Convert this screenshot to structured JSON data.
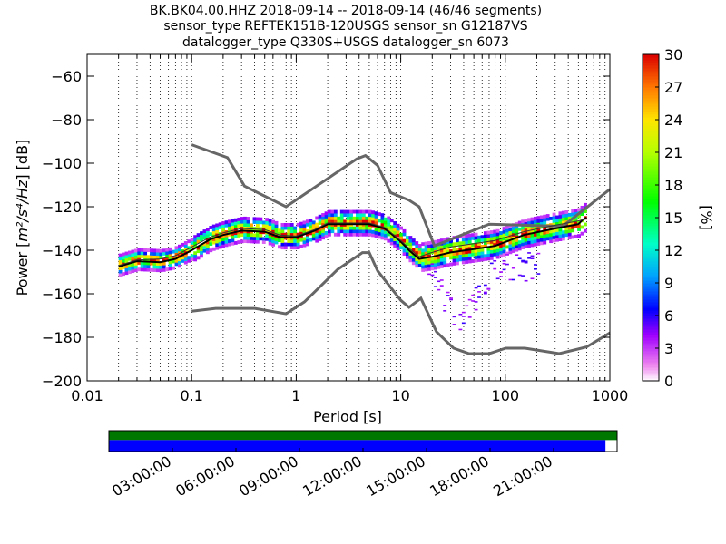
{
  "chart_data": {
    "type": "heatmap",
    "title_lines": [
      "BK.BK04.00.HHZ   2018-09-14 -- 2018-09-14  (46/46 segments)",
      "sensor_type REFTEK151B-120USGS sensor_sn G12187VS",
      "datalogger_type Q330S+USGS datalogger_sn 6073"
    ],
    "xlabel": "Period [s]",
    "ylabel_prefix": "Power [",
    "ylabel_units": "m²/s⁴/Hz",
    "ylabel_suffix": "] [dB]",
    "xscale": "log",
    "xlim": [
      0.01,
      1000
    ],
    "ylim": [
      -200,
      -50
    ],
    "x_ticks": [
      {
        "v": 0.01,
        "label": "0.01"
      },
      {
        "v": 0.1,
        "label": "0.1"
      },
      {
        "v": 1,
        "label": "1"
      },
      {
        "v": 10,
        "label": "10"
      },
      {
        "v": 100,
        "label": "100"
      },
      {
        "v": 1000,
        "label": "1000"
      }
    ],
    "y_ticks": [
      {
        "v": -60,
        "label": "−60"
      },
      {
        "v": -80,
        "label": "−80"
      },
      {
        "v": -100,
        "label": "−100"
      },
      {
        "v": -120,
        "label": "−120"
      },
      {
        "v": -140,
        "label": "−140"
      },
      {
        "v": -160,
        "label": "−160"
      },
      {
        "v": -180,
        "label": "−180"
      },
      {
        "v": -200,
        "label": "−200"
      }
    ],
    "grid": "vertical dotted at minor log ticks",
    "colorbar": {
      "label": "[%]",
      "range": [
        0,
        30
      ],
      "ticks": [
        {
          "v": 0,
          "label": "0"
        },
        {
          "v": 3,
          "label": "3"
        },
        {
          "v": 6,
          "label": "6"
        },
        {
          "v": 9,
          "label": "9"
        },
        {
          "v": 12,
          "label": "12"
        },
        {
          "v": 15,
          "label": "15"
        },
        {
          "v": 18,
          "label": "18"
        },
        {
          "v": 21,
          "label": "21"
        },
        {
          "v": 24,
          "label": "24"
        },
        {
          "v": 27,
          "label": "27"
        },
        {
          "v": 30,
          "label": "30"
        }
      ]
    },
    "noise_models": [
      {
        "name": "high",
        "points": [
          [
            0.1,
            -91.5
          ],
          [
            0.22,
            -97.4
          ],
          [
            0.32,
            -110.5
          ],
          [
            0.8,
            -120
          ],
          [
            3.8,
            -98
          ],
          [
            4.6,
            -96.5
          ],
          [
            6,
            -101
          ],
          [
            8,
            -113.5
          ],
          [
            12,
            -117
          ],
          [
            15,
            -120
          ],
          [
            21,
            -138
          ],
          [
            70,
            -128
          ],
          [
            354,
            -129
          ],
          [
            1000,
            -112
          ]
        ]
      },
      {
        "name": "low",
        "points": [
          [
            0.1,
            -168
          ],
          [
            0.17,
            -166.7
          ],
          [
            0.4,
            -166.7
          ],
          [
            0.8,
            -169.2
          ],
          [
            1.2,
            -163.7
          ],
          [
            2.5,
            -148.8
          ],
          [
            4.3,
            -141.1
          ],
          [
            5.0,
            -141.1
          ],
          [
            6,
            -149.4
          ],
          [
            10,
            -163
          ],
          [
            12,
            -166.2
          ],
          [
            15.6,
            -162.1
          ],
          [
            22,
            -177.5
          ],
          [
            32,
            -185
          ],
          [
            45,
            -187.5
          ],
          [
            70,
            -187.5
          ],
          [
            101,
            -185
          ],
          [
            154,
            -185
          ],
          [
            328,
            -187.5
          ],
          [
            600,
            -184.4
          ],
          [
            1000,
            -178
          ]
        ]
      }
    ],
    "mean_curve": [
      [
        0.02,
        -147.5
      ],
      [
        0.03,
        -145
      ],
      [
        0.05,
        -145.5
      ],
      [
        0.07,
        -144
      ],
      [
        0.1,
        -140
      ],
      [
        0.15,
        -135
      ],
      [
        0.2,
        -133
      ],
      [
        0.3,
        -131
      ],
      [
        0.5,
        -131.5
      ],
      [
        0.7,
        -134
      ],
      [
        1,
        -134
      ],
      [
        1.5,
        -131
      ],
      [
        2,
        -128
      ],
      [
        3,
        -128
      ],
      [
        5,
        -128
      ],
      [
        7,
        -130
      ],
      [
        10,
        -136
      ],
      [
        12,
        -140
      ],
      [
        15,
        -144
      ],
      [
        20,
        -143
      ],
      [
        30,
        -141
      ],
      [
        50,
        -139.5
      ],
      [
        80,
        -138
      ],
      [
        150,
        -133
      ],
      [
        300,
        -130
      ],
      [
        500,
        -128
      ],
      [
        550,
        -126
      ],
      [
        600,
        -125
      ]
    ],
    "median_curve": [
      [
        0.02,
        -147
      ],
      [
        0.03,
        -144.5
      ],
      [
        0.05,
        -144
      ],
      [
        0.07,
        -142.5
      ],
      [
        0.1,
        -138.5
      ],
      [
        0.15,
        -134
      ],
      [
        0.2,
        -132
      ],
      [
        0.3,
        -130
      ],
      [
        0.5,
        -130.5
      ],
      [
        0.7,
        -133
      ],
      [
        1,
        -133.5
      ],
      [
        1.5,
        -130.5
      ],
      [
        2,
        -127.5
      ],
      [
        3,
        -127.5
      ],
      [
        5,
        -127.5
      ],
      [
        7,
        -129.5
      ],
      [
        10,
        -135.5
      ],
      [
        12,
        -139
      ],
      [
        15,
        -143
      ],
      [
        20,
        -141
      ],
      [
        30,
        -138.5
      ],
      [
        50,
        -137
      ],
      [
        80,
        -135.5
      ],
      [
        150,
        -131.5
      ],
      [
        300,
        -128.5
      ],
      [
        500,
        -126.5
      ],
      [
        600,
        -125.5
      ]
    ],
    "time_axis": {
      "tick_labels": [
        "03:00:00",
        "06:00:00",
        "09:00:00",
        "12:00:00",
        "15:00:00",
        "18:00:00",
        "21:00:00"
      ],
      "tick_hours": [
        3,
        6,
        9,
        12,
        15,
        18,
        21
      ],
      "span_hours": [
        0,
        24
      ],
      "data_available_hours": [
        0,
        24
      ],
      "segments_used_hours": [
        0,
        23.45
      ],
      "colors": {
        "available": "#007700",
        "used": "#0000ff"
      }
    }
  }
}
